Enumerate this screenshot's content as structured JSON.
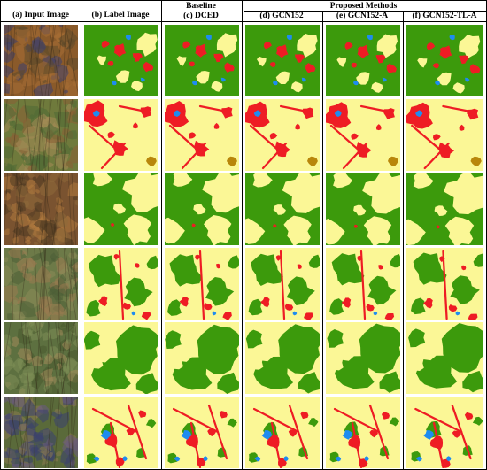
{
  "figure": {
    "group_headers": {
      "baseline": "Baseline",
      "proposed": "Proposed Methods"
    },
    "columns": [
      {
        "label": "(a)  Input Image",
        "kind": "input"
      },
      {
        "label": "(b)  Label Image",
        "kind": "label"
      },
      {
        "label": "(c)  DCED",
        "kind": "prediction"
      },
      {
        "label": "(d)  GCN152",
        "kind": "prediction"
      },
      {
        "label": "(e)  GCN152-A",
        "kind": "prediction"
      },
      {
        "label": "(f)  GCN152-TL-A",
        "kind": "prediction"
      }
    ],
    "row_count": 6,
    "class_colors": {
      "agriculture": "#fbf796",
      "forest": "#3c9a0c",
      "urban": "#ee1c24",
      "water": "#1e8cf0",
      "miscellaneous": "#b8860b"
    }
  }
}
